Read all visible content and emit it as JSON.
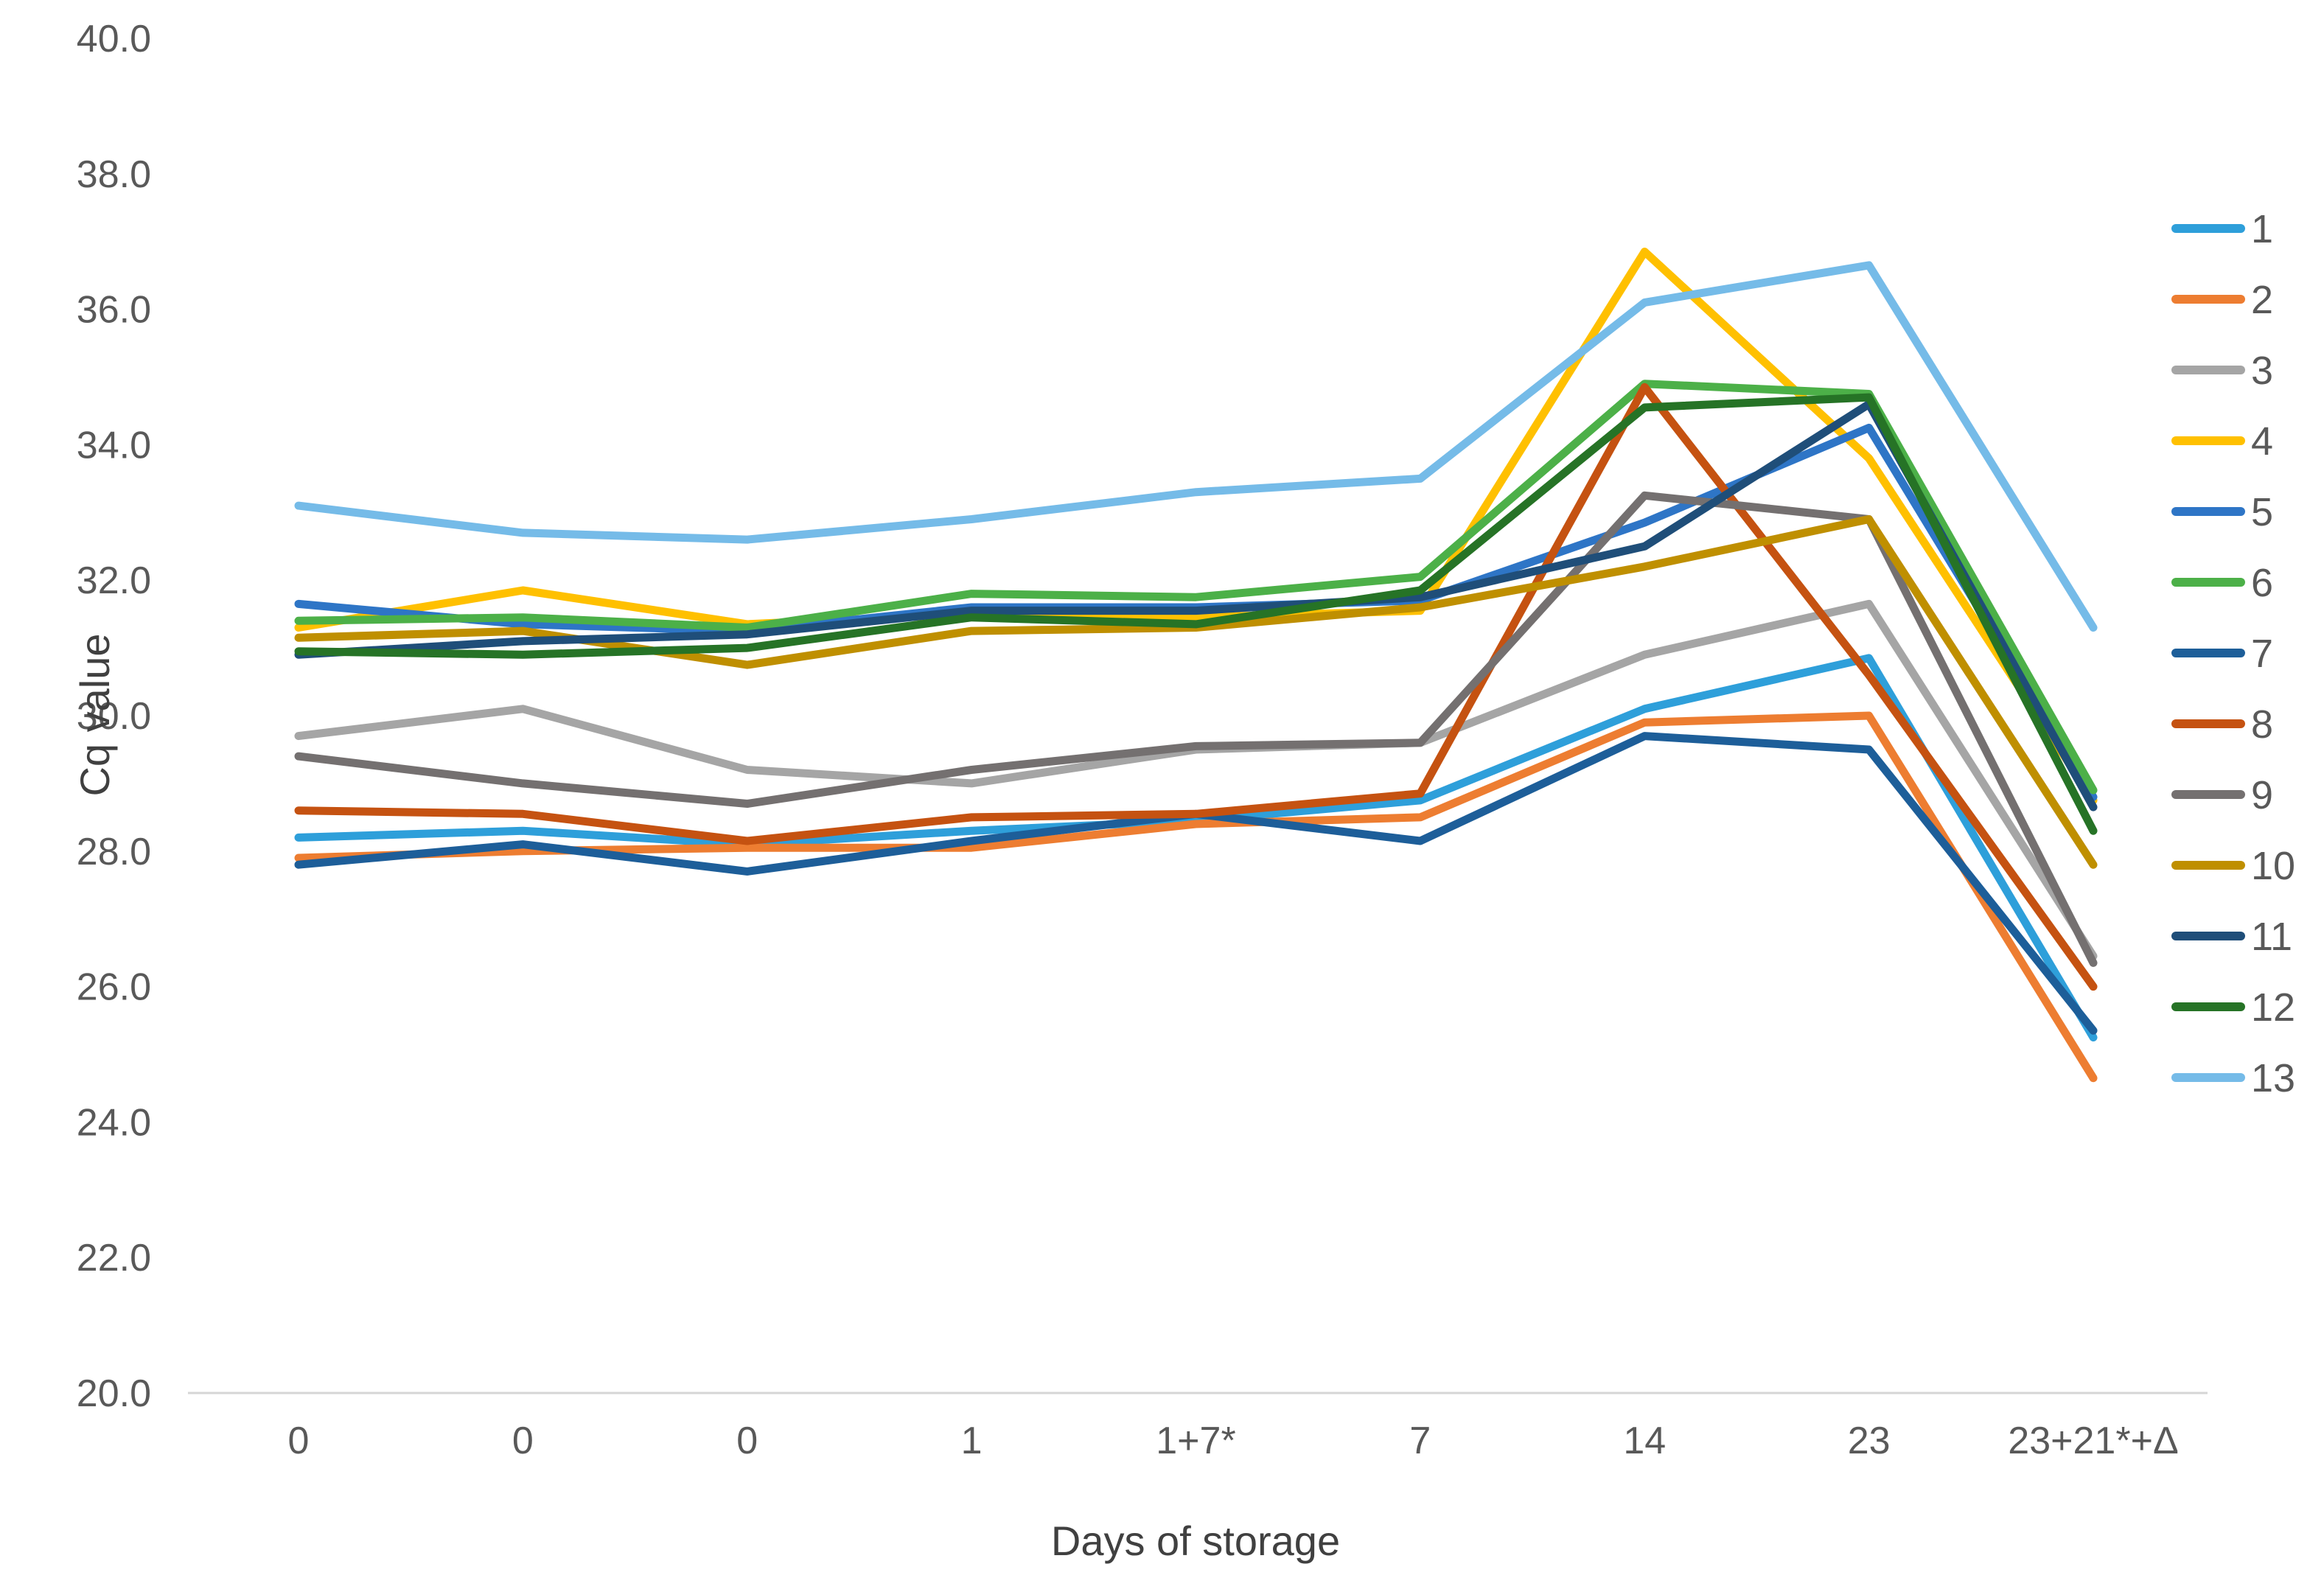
{
  "chart_data": {
    "type": "line",
    "title": "",
    "xlabel": "Days of storage",
    "ylabel": "Cq value",
    "categories": [
      "0",
      "0",
      "0",
      "1",
      "1+7*",
      "7",
      "14",
      "23",
      "23+21*+Δ"
    ],
    "ylim": [
      20.0,
      40.0
    ],
    "ytick_step": 2.0,
    "ytick_labels": [
      "20.0",
      "22.0",
      "24.0",
      "26.0",
      "28.0",
      "30.0",
      "32.0",
      "34.0",
      "36.0",
      "38.0",
      "40.0"
    ],
    "grid": false,
    "legend_position": "right",
    "axis_line_color": "#D6D6D6",
    "series": [
      {
        "name": "1",
        "color": "#2E9FDA",
        "values": [
          28.2,
          28.3,
          28.1,
          28.3,
          28.45,
          28.75,
          30.1,
          30.85,
          25.25
        ]
      },
      {
        "name": "2",
        "color": "#ED7D31",
        "values": [
          27.9,
          28.0,
          28.05,
          28.05,
          28.4,
          28.5,
          29.9,
          30.0,
          24.65
        ]
      },
      {
        "name": "3",
        "color": "#A5A5A5",
        "values": [
          29.7,
          30.1,
          29.2,
          29.0,
          29.5,
          29.6,
          30.9,
          31.65,
          26.45
        ]
      },
      {
        "name": "4",
        "color": "#FFC000",
        "values": [
          31.3,
          31.85,
          31.35,
          31.5,
          31.45,
          31.55,
          36.85,
          33.8,
          28.75
        ]
      },
      {
        "name": "5",
        "color": "#2E75C6",
        "values": [
          31.65,
          31.35,
          31.25,
          31.6,
          31.6,
          31.7,
          32.85,
          34.25,
          28.8
        ]
      },
      {
        "name": "6",
        "color": "#4CB048",
        "values": [
          31.4,
          31.45,
          31.3,
          31.8,
          31.75,
          32.05,
          34.9,
          34.75,
          28.9
        ]
      },
      {
        "name": "7",
        "color": "#1D5E99",
        "values": [
          27.8,
          28.1,
          27.7,
          28.15,
          28.55,
          28.15,
          29.7,
          29.5,
          25.35
        ]
      },
      {
        "name": "8",
        "color": "#C55211",
        "values": [
          28.6,
          28.55,
          28.15,
          28.5,
          28.55,
          28.85,
          34.85,
          30.6,
          26.0
        ]
      },
      {
        "name": "9",
        "color": "#747070",
        "values": [
          29.4,
          29.0,
          28.7,
          29.2,
          29.55,
          29.6,
          33.25,
          32.9,
          26.35
        ]
      },
      {
        "name": "10",
        "color": "#BF8F00",
        "values": [
          31.15,
          31.25,
          30.75,
          31.25,
          31.3,
          31.6,
          32.2,
          32.9,
          27.8
        ]
      },
      {
        "name": "11",
        "color": "#1F4E79",
        "values": [
          30.9,
          31.1,
          31.2,
          31.55,
          31.55,
          31.75,
          32.5,
          34.6,
          28.65
        ]
      },
      {
        "name": "12",
        "color": "#267326",
        "values": [
          30.95,
          30.9,
          31.0,
          31.45,
          31.35,
          31.85,
          34.55,
          34.7,
          28.3
        ]
      },
      {
        "name": "13",
        "color": "#75BBE8",
        "values": [
          33.1,
          32.7,
          32.6,
          32.9,
          33.3,
          33.5,
          36.1,
          36.65,
          31.3
        ]
      }
    ]
  }
}
